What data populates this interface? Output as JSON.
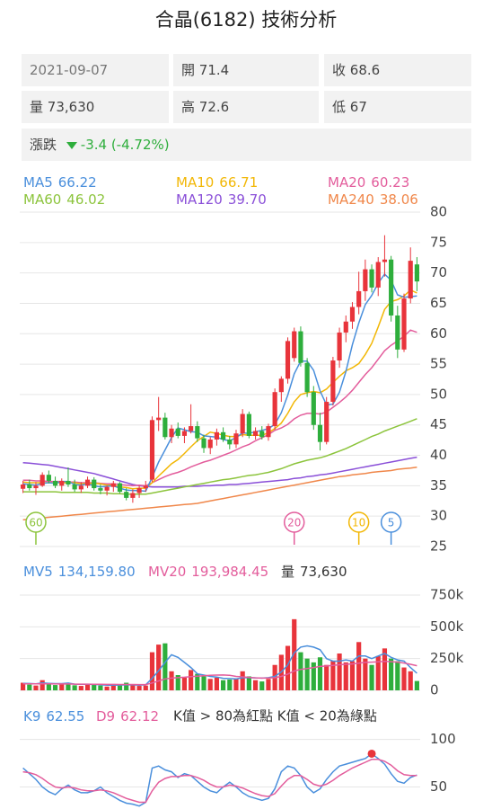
{
  "header": {
    "title": "合晶(6182) 技術分析"
  },
  "info": {
    "date": "2021-09-07",
    "open": {
      "label": "開",
      "value": "71.4"
    },
    "close": {
      "label": "收",
      "value": "68.6"
    },
    "volume": {
      "label": "量",
      "value": "73,630"
    },
    "high": {
      "label": "高",
      "value": "72.6"
    },
    "low": {
      "label": "低",
      "value": "67"
    },
    "change": {
      "label": "漲跌",
      "value": "-3.4 (-4.72%)",
      "color": "#2eae3c"
    }
  },
  "chart_data": [
    {
      "type": "candlestick",
      "up_color": "#e8343b",
      "down_color": "#2eae3c",
      "ylim": [
        25,
        80
      ],
      "yticks": [
        25,
        30,
        35,
        40,
        45,
        50,
        55,
        60,
        65,
        70,
        75,
        80
      ],
      "grid": true,
      "open": [
        34.5,
        35.2,
        34.6,
        35.0,
        36.8,
        35.8,
        35.0,
        35.8,
        35.2,
        34.4,
        35.0,
        36.0,
        34.6,
        34.2,
        34.8,
        35.4,
        34.0,
        33.0,
        33.8,
        34.6,
        36.0,
        45.8,
        46.2,
        43.0,
        44.4,
        43.2,
        44.0,
        44.8,
        42.8,
        41.2,
        42.6,
        43.8,
        42.6,
        41.8,
        43.6,
        46.8,
        43.2,
        44.0,
        43.0,
        44.8,
        50.4,
        52.6,
        56.0,
        60.4,
        55.2,
        50.4,
        45.0,
        42.2,
        48.8,
        55.6,
        60.2,
        62.0,
        64.4,
        67.0,
        70.6,
        67.6,
        71.8,
        72.2,
        63.0,
        57.4,
        65.8,
        71.4
      ],
      "high": [
        35.8,
        36.0,
        35.6,
        37.2,
        37.5,
        36.5,
        36.2,
        38.0,
        36.0,
        35.6,
        36.5,
        36.4,
        35.2,
        35.0,
        35.8,
        35.6,
        34.6,
        34.4,
        35.0,
        35.8,
        46.4,
        49.6,
        47.0,
        45.0,
        45.4,
        44.6,
        48.4,
        45.6,
        43.4,
        43.0,
        44.4,
        44.6,
        43.2,
        44.2,
        47.6,
        47.2,
        44.6,
        44.8,
        45.2,
        51.0,
        53.0,
        59.4,
        61.0,
        61.2,
        56.0,
        51.4,
        47.0,
        49.6,
        56.2,
        61.0,
        63.0,
        65.2,
        70.2,
        72.2,
        71.4,
        72.6,
        76.2,
        72.8,
        64.6,
        66.6,
        74.2,
        72.6
      ],
      "low": [
        33.8,
        34.2,
        33.5,
        34.8,
        35.4,
        34.6,
        34.2,
        34.8,
        34.0,
        33.8,
        34.6,
        34.2,
        33.6,
        33.4,
        34.0,
        33.8,
        32.6,
        32.2,
        33.0,
        34.0,
        35.6,
        44.0,
        42.6,
        42.0,
        42.8,
        42.0,
        43.6,
        42.2,
        40.4,
        40.2,
        41.6,
        42.2,
        41.0,
        41.2,
        43.0,
        42.8,
        42.6,
        42.6,
        42.4,
        44.2,
        48.8,
        51.8,
        55.4,
        54.6,
        49.6,
        44.2,
        40.8,
        41.8,
        48.2,
        54.4,
        58.6,
        60.8,
        63.2,
        65.4,
        66.8,
        66.2,
        69.4,
        62.0,
        56.0,
        57.0,
        65.0,
        67.0
      ],
      "close": [
        35.2,
        34.6,
        35.0,
        36.8,
        35.8,
        35.0,
        35.8,
        35.2,
        34.4,
        35.0,
        36.0,
        34.6,
        34.2,
        34.8,
        35.4,
        34.0,
        33.0,
        33.8,
        34.6,
        35.0,
        45.8,
        46.2,
        43.0,
        44.4,
        43.2,
        44.0,
        44.8,
        42.8,
        41.2,
        42.6,
        43.8,
        42.6,
        41.8,
        43.6,
        46.8,
        43.2,
        44.0,
        43.0,
        44.8,
        50.4,
        52.6,
        58.8,
        60.4,
        55.2,
        50.4,
        45.0,
        42.2,
        48.8,
        55.6,
        60.2,
        62.0,
        64.4,
        67.0,
        70.6,
        67.6,
        71.8,
        72.2,
        63.0,
        57.4,
        65.8,
        72.0,
        68.6
      ],
      "series": [
        {
          "name": "MA5",
          "color": "#4a8fdc",
          "value_label": "66.22",
          "values": [
            35.3,
            35.2,
            35.1,
            35.4,
            35.5,
            35.4,
            35.7,
            35.7,
            35.2,
            35.1,
            35.3,
            35.0,
            34.8,
            34.9,
            35.0,
            34.6,
            34.3,
            34.2,
            34.2,
            34.1,
            36.4,
            38.9,
            40.9,
            42.9,
            44.5,
            44.2,
            43.9,
            43.8,
            43.2,
            43.1,
            43.0,
            42.6,
            42.4,
            42.9,
            43.7,
            43.6,
            43.9,
            44.1,
            44.4,
            45.1,
            47.0,
            49.9,
            53.4,
            55.5,
            55.5,
            54.0,
            50.6,
            48.3,
            48.4,
            50.4,
            53.8,
            58.2,
            61.8,
            64.8,
            66.3,
            68.3,
            69.8,
            68.8,
            66.4,
            66.0,
            66.1,
            66.22
          ]
        },
        {
          "name": "MA10",
          "color": "#f2b705",
          "value_label": "66.71",
          "values": [
            35.6,
            35.5,
            35.5,
            35.5,
            35.5,
            35.5,
            35.5,
            35.5,
            35.5,
            35.3,
            35.4,
            35.4,
            35.3,
            35.1,
            35.1,
            34.8,
            34.7,
            34.5,
            34.6,
            34.6,
            35.5,
            36.6,
            37.6,
            38.6,
            39.3,
            40.3,
            41.4,
            42.4,
            43.1,
            43.8,
            43.6,
            43.3,
            43.1,
            43.1,
            43.4,
            43.3,
            43.3,
            43.3,
            43.7,
            44.4,
            45.3,
            46.9,
            48.8,
            50.0,
            50.3,
            50.5,
            50.3,
            50.9,
            52.0,
            53.0,
            53.9,
            54.4,
            55.1,
            56.6,
            58.4,
            61.1,
            64.0,
            65.3,
            65.6,
            66.2,
            67.2,
            66.71
          ]
        },
        {
          "name": "MA20",
          "color": "#e35d9c",
          "value_label": "60.23",
          "values": [
            35.9,
            35.9,
            35.8,
            35.8,
            35.7,
            35.7,
            35.7,
            35.6,
            35.6,
            35.5,
            35.5,
            35.5,
            35.4,
            35.3,
            35.3,
            35.2,
            35.1,
            35.0,
            35.1,
            35.0,
            35.5,
            36.0,
            36.5,
            36.9,
            37.2,
            37.6,
            38.1,
            38.5,
            38.9,
            39.2,
            39.6,
            40.0,
            40.4,
            40.9,
            41.4,
            41.8,
            42.4,
            42.9,
            43.4,
            44.1,
            44.5,
            45.1,
            46.0,
            46.6,
            46.9,
            46.9,
            46.8,
            47.1,
            47.9,
            48.7,
            49.6,
            50.7,
            52.0,
            53.3,
            54.4,
            55.8,
            57.2,
            58.1,
            58.8,
            59.6,
            60.6,
            60.23
          ]
        },
        {
          "name": "MA60",
          "color": "#8cc43c",
          "value_label": "46.02",
          "values": [
            34.0,
            34.0,
            34.0,
            34.0,
            34.0,
            34.0,
            33.9,
            33.9,
            33.9,
            33.9,
            33.9,
            33.8,
            33.8,
            33.8,
            33.7,
            33.7,
            33.6,
            33.6,
            33.6,
            33.6,
            33.8,
            34.0,
            34.2,
            34.4,
            34.6,
            34.8,
            35.0,
            35.2,
            35.4,
            35.6,
            35.8,
            36.0,
            36.1,
            36.3,
            36.5,
            36.7,
            36.8,
            37.0,
            37.2,
            37.5,
            37.8,
            38.2,
            38.6,
            38.9,
            39.2,
            39.4,
            39.6,
            39.9,
            40.3,
            40.7,
            41.1,
            41.6,
            42.1,
            42.6,
            43.1,
            43.5,
            44.0,
            44.4,
            44.8,
            45.2,
            45.6,
            46.02
          ]
        },
        {
          "name": "MA120",
          "color": "#8a4fd8",
          "value_label": "39.70",
          "values": [
            38.8,
            38.7,
            38.6,
            38.5,
            38.4,
            38.2,
            38.0,
            37.8,
            37.6,
            37.4,
            37.2,
            37.0,
            36.7,
            36.4,
            36.1,
            35.8,
            35.5,
            35.2,
            35.0,
            34.9,
            34.8,
            34.8,
            34.8,
            34.8,
            34.8,
            34.9,
            34.9,
            34.9,
            35.0,
            35.0,
            35.1,
            35.1,
            35.2,
            35.2,
            35.3,
            35.4,
            35.5,
            35.6,
            35.7,
            35.8,
            35.9,
            36.0,
            36.2,
            36.3,
            36.5,
            36.6,
            36.8,
            36.9,
            37.1,
            37.3,
            37.5,
            37.7,
            37.9,
            38.1,
            38.3,
            38.5,
            38.7,
            38.9,
            39.1,
            39.3,
            39.5,
            39.7
          ]
        },
        {
          "name": "MA240",
          "color": "#f0874a",
          "value_label": "38.06",
          "values": [
            29.4,
            29.5,
            29.6,
            29.7,
            29.8,
            29.9,
            30.0,
            30.1,
            30.2,
            30.3,
            30.4,
            30.5,
            30.6,
            30.7,
            30.8,
            30.9,
            31.0,
            31.1,
            31.2,
            31.3,
            31.4,
            31.5,
            31.6,
            31.7,
            31.8,
            31.9,
            32.0,
            32.1,
            32.3,
            32.5,
            32.7,
            32.9,
            33.1,
            33.3,
            33.5,
            33.7,
            33.9,
            34.1,
            34.3,
            34.5,
            34.7,
            34.9,
            35.1,
            35.3,
            35.5,
            35.7,
            35.9,
            36.1,
            36.3,
            36.5,
            36.6,
            36.8,
            36.9,
            37.0,
            37.2,
            37.3,
            37.4,
            37.5,
            37.7,
            37.8,
            37.9,
            38.06
          ]
        }
      ],
      "period_markers": [
        {
          "period": 60,
          "color": "#8cc43c"
        },
        {
          "period": 20,
          "color": "#e35d9c"
        },
        {
          "period": 10,
          "color": "#f2b705"
        },
        {
          "period": 5,
          "color": "#4a8fdc"
        }
      ]
    },
    {
      "type": "bar",
      "name": "量",
      "value_label": "73,630",
      "ylim": [
        0,
        750000
      ],
      "yticks": [
        0,
        {
          "value": 250000,
          "label": "250k"
        },
        {
          "value": 500000,
          "label": "500k"
        },
        {
          "value": 750000,
          "label": "750k"
        }
      ],
      "grid": true,
      "values": [
        60000,
        45000,
        38000,
        80000,
        50000,
        42000,
        55000,
        60000,
        40000,
        35000,
        50000,
        45000,
        38000,
        30000,
        40000,
        45000,
        60000,
        40000,
        35000,
        38000,
        300000,
        360000,
        370000,
        150000,
        120000,
        100000,
        160000,
        130000,
        110000,
        90000,
        100000,
        80000,
        85000,
        90000,
        150000,
        110000,
        80000,
        70000,
        90000,
        200000,
        280000,
        350000,
        560000,
        300000,
        250000,
        220000,
        260000,
        200000,
        230000,
        290000,
        220000,
        230000,
        380000,
        250000,
        200000,
        270000,
        330000,
        250000,
        230000,
        180000,
        150000,
        73630
      ],
      "series": [
        {
          "name": "MV5",
          "color": "#4a8fdc",
          "value_label": "134,159.80",
          "values": [
            55000,
            54000,
            52000,
            58000,
            55000,
            53000,
            53000,
            57000,
            49000,
            48000,
            48000,
            47000,
            44000,
            40000,
            41000,
            42000,
            43000,
            43000,
            40000,
            44000,
            95000,
            155000,
            220000,
            280000,
            260000,
            220000,
            180000,
            130000,
            120000,
            110000,
            105000,
            95000,
            93000,
            90000,
            100000,
            100000,
            98000,
            96000,
            100000,
            110000,
            145000,
            200000,
            295000,
            340000,
            350000,
            340000,
            320000,
            250000,
            230000,
            230000,
            240000,
            230000,
            270000,
            270000,
            250000,
            270000,
            290000,
            260000,
            240000,
            230000,
            180000,
            134159.8
          ]
        },
        {
          "name": "MV20",
          "color": "#e35d9c",
          "value_label": "193,984.45",
          "values": [
            52000,
            52000,
            51000,
            51000,
            51000,
            50000,
            50000,
            50000,
            49000,
            49000,
            49000,
            48000,
            48000,
            47000,
            47000,
            46000,
            46000,
            46000,
            45000,
            45000,
            58000,
            74000,
            90000,
            96000,
            100000,
            103000,
            108000,
            112000,
            115000,
            118000,
            120000,
            121000,
            118000,
            110000,
            106000,
            102000,
            98000,
            96000,
            97000,
            100000,
            110000,
            128000,
            152000,
            165000,
            172000,
            180000,
            188000,
            192000,
            196000,
            202000,
            205000,
            208000,
            214000,
            220000,
            222000,
            225000,
            228000,
            226000,
            222000,
            215000,
            205000,
            193984.45
          ]
        }
      ]
    },
    {
      "type": "line",
      "note": "K值 > 80為紅點 K值 < 20為綠點",
      "overbought": 80,
      "oversold": 20,
      "overbought_color": "#e8343b",
      "oversold_color": "#2eae3c",
      "ylim": [
        25,
        110
      ],
      "yticks": [
        50,
        100
      ],
      "grid": true,
      "series": [
        {
          "name": "K9",
          "color": "#4a8fdc",
          "value_label": "62.55",
          "values": [
            70,
            64,
            58,
            50,
            45,
            42,
            48,
            52,
            47,
            44,
            44,
            46,
            50,
            44,
            40,
            36,
            33,
            32,
            30,
            34,
            70,
            72,
            68,
            66,
            60,
            64,
            62,
            56,
            50,
            46,
            44,
            50,
            55,
            50,
            44,
            40,
            38,
            36,
            38,
            48,
            66,
            72,
            70,
            62,
            50,
            44,
            48,
            58,
            66,
            72,
            74,
            76,
            78,
            80,
            85,
            80,
            74,
            64,
            56,
            54,
            60,
            62.55
          ]
        },
        {
          "name": "D9",
          "color": "#e35d9c",
          "value_label": "62.12",
          "values": [
            66,
            65,
            63,
            59,
            54,
            50,
            49,
            50,
            49,
            47,
            46,
            46,
            47,
            46,
            44,
            41,
            38,
            36,
            34,
            34,
            46,
            55,
            59,
            61,
            61,
            62,
            62,
            60,
            57,
            53,
            50,
            50,
            52,
            51,
            49,
            46,
            43,
            41,
            40,
            43,
            51,
            58,
            62,
            62,
            58,
            53,
            51,
            53,
            57,
            62,
            66,
            70,
            73,
            76,
            79,
            79,
            77,
            73,
            67,
            63,
            62,
            62.12
          ]
        }
      ]
    }
  ]
}
